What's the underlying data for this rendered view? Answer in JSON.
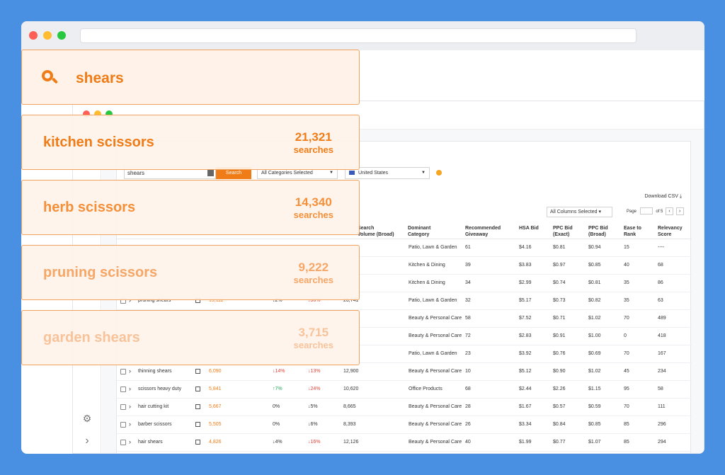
{
  "search": {
    "query": "shears"
  },
  "results": [
    {
      "name": "kitchen scissors",
      "count": "21,321",
      "unit": "searches",
      "color": "#f07c17"
    },
    {
      "name": "herb scissors",
      "count": "14,340",
      "unit": "searches",
      "color": "#f48f3a"
    },
    {
      "name": "pruning scissors",
      "count": "9,222",
      "unit": "searches",
      "color": "#f6a666"
    },
    {
      "name": "garden shears",
      "count": "3,715",
      "unit": "searches",
      "color": "#f8c39a"
    }
  ],
  "toolbar": {
    "input_value": "shears",
    "search_label": "Search",
    "category": "All Categories Selected",
    "country": "United States",
    "download": "Download CSV",
    "columns": "All Columns Selected",
    "page_label": "Page",
    "page_of": "of 5"
  },
  "columns": {
    "search_broad": "Search\nVolume (Broad)",
    "dominant": "Dominant\nCategory",
    "giveaway": "Recommended\nGiveaway",
    "hsa": "HSA Bid",
    "ppc_exact": "PPC Bid\n(Exact)",
    "ppc_broad": "PPC Bid\n(Broad)",
    "ease": "Ease to\nRank",
    "relevancy": "Relevancy\nScore"
  },
  "rows": [
    {
      "keyword": "",
      "volume": "",
      "t1": "",
      "t2": "",
      "broad": "",
      "category": "Patio, Lawn & Garden",
      "giveaway": "61",
      "hsa": "$4.16",
      "ppc_exact": "$0.81",
      "ppc_broad": "$0.94",
      "ease": "15",
      "relevancy": "----"
    },
    {
      "keyword": "",
      "volume": "",
      "t1": "",
      "t2": "",
      "broad": "",
      "category": "Kitchen & Dining",
      "giveaway": "39",
      "hsa": "$3.83",
      "ppc_exact": "$0.97",
      "ppc_broad": "$0.85",
      "ease": "40",
      "relevancy": "68"
    },
    {
      "keyword": "",
      "volume": "",
      "t1": "",
      "t2": "",
      "broad": "",
      "category": "Kitchen & Dining",
      "giveaway": "34",
      "hsa": "$2.99",
      "ppc_exact": "$0.74",
      "ppc_broad": "$0.81",
      "ease": "35",
      "relevancy": "86"
    },
    {
      "keyword": "pruning shears",
      "volume": "19,111",
      "t1": "2%",
      "t2": "36%",
      "broad": "26,741",
      "category": "Patio, Lawn & Garden",
      "giveaway": "32",
      "hsa": "$5.17",
      "ppc_exact": "$0.73",
      "ppc_broad": "$0.82",
      "ease": "35",
      "relevancy": "63"
    },
    {
      "keyword": "",
      "volume": "",
      "t1": "",
      "t2": "",
      "broad": "",
      "category": "Beauty & Personal Care",
      "giveaway": "58",
      "hsa": "$7.52",
      "ppc_exact": "$0.71",
      "ppc_broad": "$1.02",
      "ease": "70",
      "relevancy": "489"
    },
    {
      "keyword": "",
      "volume": "",
      "t1": "",
      "t2": "",
      "broad": "",
      "category": "Beauty & Personal Care",
      "giveaway": "72",
      "hsa": "$2.83",
      "ppc_exact": "$0.91",
      "ppc_broad": "$1.00",
      "ease": "0",
      "relevancy": "418"
    },
    {
      "keyword": "",
      "volume": "",
      "t1": "",
      "t2": "",
      "broad": "",
      "category": "Patio, Lawn & Garden",
      "giveaway": "23",
      "hsa": "$3.92",
      "ppc_exact": "$0.76",
      "ppc_broad": "$0.69",
      "ease": "70",
      "relevancy": "167"
    },
    {
      "keyword": "thinning shears",
      "volume": "6,090",
      "t1": "14%",
      "t2": "13%",
      "broad": "12,900",
      "category": "Beauty & Personal Care",
      "giveaway": "10",
      "hsa": "$5.12",
      "ppc_exact": "$0.90",
      "ppc_broad": "$1.02",
      "ease": "45",
      "relevancy": "234"
    },
    {
      "keyword": "scissors heavy duty",
      "volume": "5,841",
      "t1": "7%",
      "t2": "24%",
      "broad": "10,620",
      "category": "Office Products",
      "giveaway": "68",
      "hsa": "$2.44",
      "ppc_exact": "$2.26",
      "ppc_broad": "$1.15",
      "ease": "95",
      "relevancy": "58"
    },
    {
      "keyword": "hair cutting kit",
      "volume": "5,667",
      "t1": "0%",
      "t2": "5%",
      "broad": "8,665",
      "category": "Beauty & Personal Care",
      "giveaway": "28",
      "hsa": "$1.67",
      "ppc_exact": "$0.57",
      "ppc_broad": "$0.59",
      "ease": "70",
      "relevancy": "111"
    },
    {
      "keyword": "barber scissors",
      "volume": "5,505",
      "t1": "0%",
      "t2": "6%",
      "broad": "8,393",
      "category": "Beauty & Personal Care",
      "giveaway": "26",
      "hsa": "$3.34",
      "ppc_exact": "$0.84",
      "ppc_broad": "$0.85",
      "ease": "85",
      "relevancy": "296"
    },
    {
      "keyword": "hair shears",
      "volume": "4,826",
      "t1": "4%",
      "t2": "16%",
      "broad": "12,126",
      "category": "Beauty & Personal Care",
      "giveaway": "40",
      "hsa": "$1.99",
      "ppc_exact": "$0.77",
      "ppc_broad": "$1.07",
      "ease": "85",
      "relevancy": "294"
    }
  ]
}
